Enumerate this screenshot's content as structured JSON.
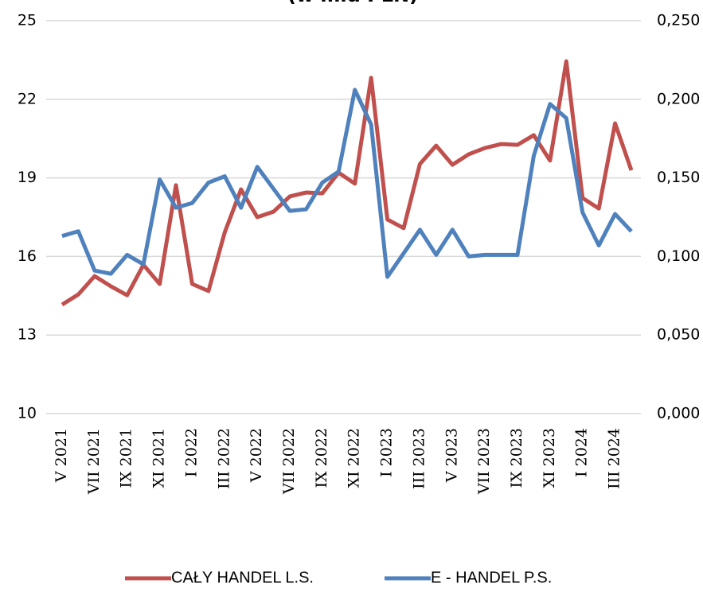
{
  "chart_data": {
    "type": "line",
    "title": "(w mld PLN)",
    "categories": [
      "V 2021",
      null,
      "VII 2021",
      null,
      "IX 2021",
      null,
      "XI 2021",
      null,
      "I 2022",
      null,
      "III 2022",
      null,
      "V 2022",
      null,
      "VII 2022",
      null,
      "IX 2022",
      null,
      "XI 2022",
      null,
      "I 2023",
      null,
      "III 2023",
      null,
      "V 2023",
      null,
      "VII 2023",
      null,
      "IX 2023",
      null,
      "XI 2023",
      null,
      "I 2024",
      null,
      "III 2024",
      null
    ],
    "series": [
      {
        "name": "CAŁY HANDEL L.S.",
        "color": "#c0504d",
        "axis": "y",
        "values": [
          14.16,
          14.55,
          15.25,
          14.86,
          14.52,
          15.68,
          14.95,
          18.72,
          14.95,
          14.68,
          16.92,
          18.56,
          17.5,
          17.71,
          18.29,
          18.44,
          18.41,
          19.2,
          18.78,
          22.82,
          17.41,
          17.08,
          19.53,
          20.23,
          19.5,
          19.9,
          20.14,
          20.29,
          20.26,
          20.63,
          19.66,
          23.45,
          18.23,
          17.83,
          21.08,
          19.29
        ]
      },
      {
        "name": "E - HANDEL P.S.",
        "color": "#4f81bd",
        "axis": "y2",
        "values": [
          0.113,
          0.116,
          0.091,
          0.089,
          0.101,
          0.095,
          0.149,
          0.131,
          0.134,
          0.147,
          0.151,
          0.131,
          0.157,
          0.143,
          0.129,
          0.13,
          0.147,
          0.154,
          0.206,
          0.184,
          0.087,
          0.102,
          0.117,
          0.101,
          0.117,
          0.1,
          0.101,
          0.101,
          0.101,
          0.164,
          0.197,
          0.188,
          0.128,
          0.107,
          0.127,
          0.116
        ]
      }
    ],
    "ylim": [
      10,
      25
    ],
    "yticks": [
      10,
      13,
      16,
      19,
      22,
      25
    ],
    "y2lim": [
      0,
      0.25
    ],
    "y2ticks": [
      {
        "value": 0,
        "label": "0,000"
      },
      {
        "value": 0.05,
        "label": "0,050"
      },
      {
        "value": 0.1,
        "label": "0,100"
      },
      {
        "value": 0.15,
        "label": "0,150"
      },
      {
        "value": 0.2,
        "label": "0,200"
      },
      {
        "value": 0.25,
        "label": "0,250"
      }
    ],
    "grid": true,
    "legend": "bottom"
  }
}
